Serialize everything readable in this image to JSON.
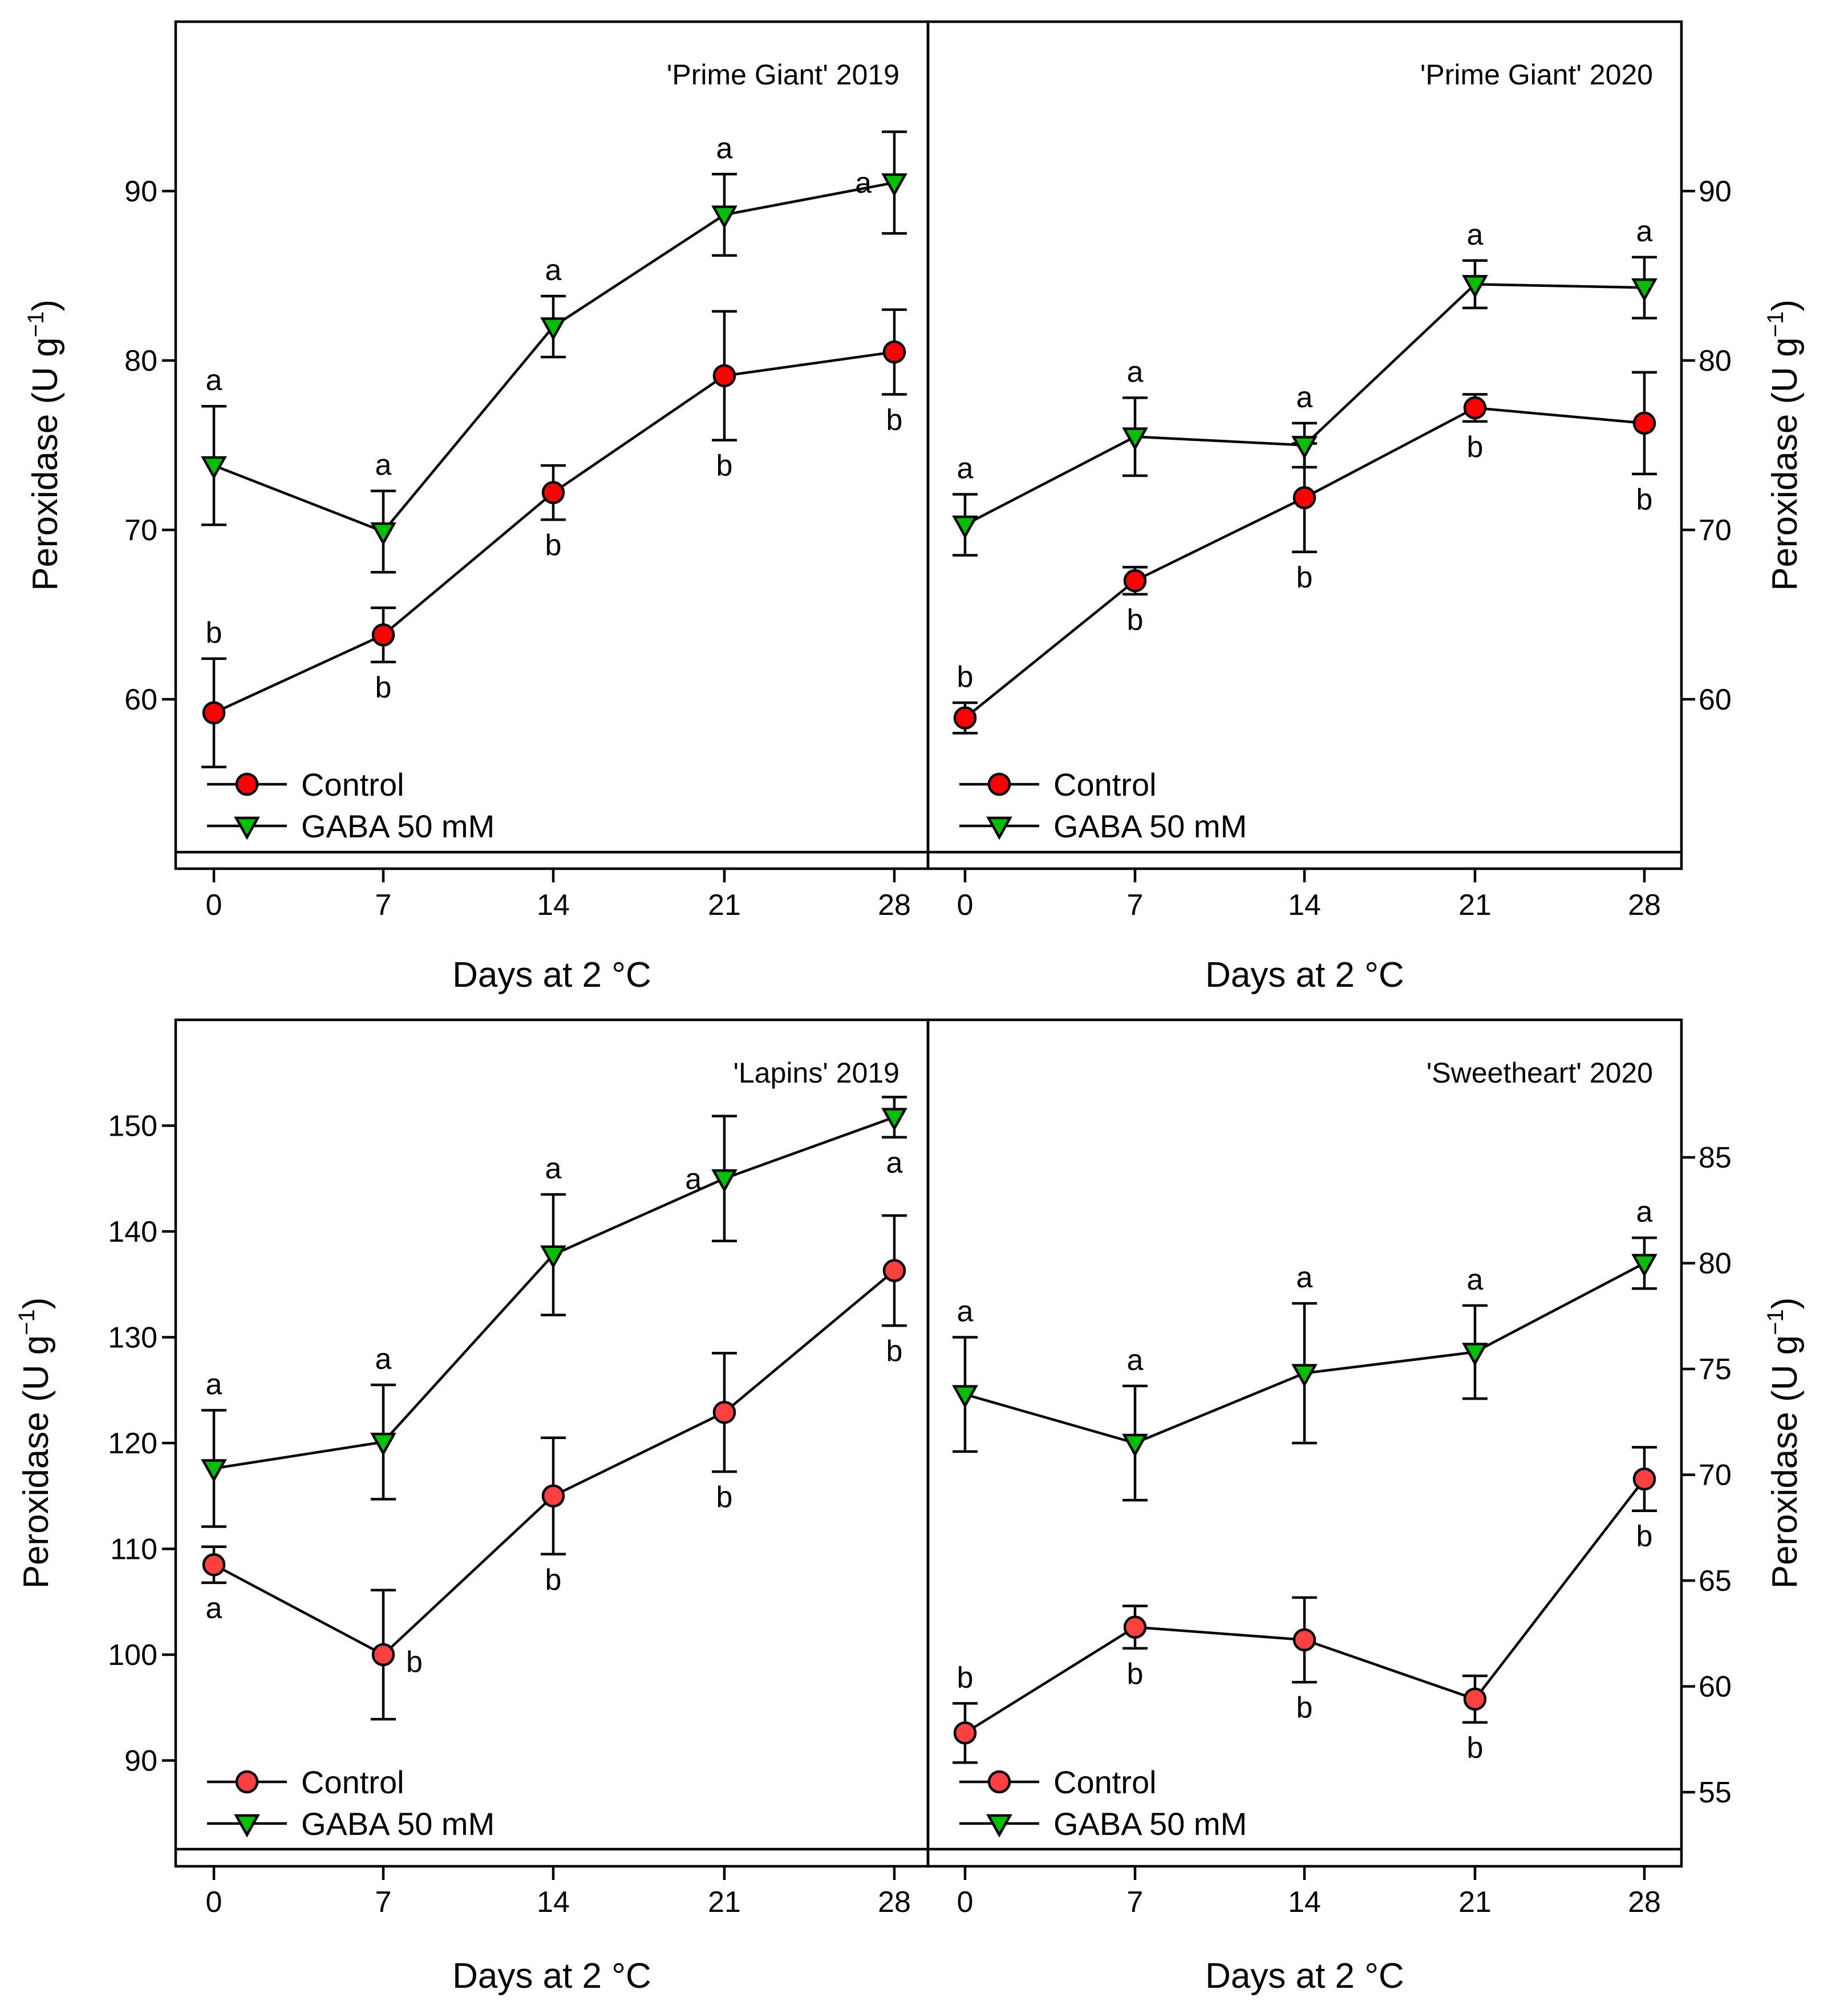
{
  "chart_data": [
    {
      "type": "line",
      "title": "'Prime Giant' 2019",
      "xlabel": "Days at 2 °C",
      "ylabel": "Peroxidase (U g−1)",
      "ylabel_main": "Peroxidase (U g",
      "ylabel_sup": "−1",
      "ylabel_close": ")",
      "y_axis_side": "left",
      "categories": [
        0,
        7,
        14,
        21,
        28
      ],
      "ylim": [
        50,
        100
      ],
      "yticks": [
        60,
        70,
        80,
        90
      ],
      "series": [
        {
          "name": "Control",
          "marker": "circle",
          "color": "#ff0000",
          "values": [
            59.2,
            63.8,
            72.2,
            79.1,
            80.5
          ],
          "errors": [
            3.2,
            1.6,
            1.6,
            3.8,
            2.5
          ],
          "letters": [
            "b",
            "b",
            "b",
            "b",
            "b"
          ],
          "letter_pos": [
            "above",
            "below",
            "below",
            "below",
            "below"
          ]
        },
        {
          "name": "GABA  50 mM",
          "marker": "triangle-down",
          "color": "#00c000",
          "values": [
            73.8,
            69.9,
            82.0,
            88.6,
            90.5
          ],
          "errors": [
            3.5,
            2.4,
            1.8,
            2.4,
            3.0
          ],
          "letters": [
            "a",
            "a",
            "a",
            "a",
            "a"
          ],
          "letter_pos": [
            "above",
            "above",
            "above",
            "above",
            "left"
          ]
        }
      ],
      "legend_location": "bottom-left"
    },
    {
      "type": "line",
      "title": "'Prime Giant' 2020",
      "xlabel": "Days at 2 °C",
      "ylabel": "Peroxidase (U g−1)",
      "ylabel_main": "Peroxidase (U g",
      "ylabel_sup": "−1",
      "ylabel_close": ")",
      "y_axis_side": "right",
      "categories": [
        0,
        7,
        14,
        21,
        28
      ],
      "ylim": [
        50,
        100
      ],
      "yticks": [
        60,
        70,
        80,
        90
      ],
      "series": [
        {
          "name": "Control",
          "marker": "circle",
          "color": "#ff0000",
          "values": [
            58.9,
            67.0,
            71.9,
            77.2,
            76.3
          ],
          "errors": [
            0.9,
            0.8,
            3.2,
            0.8,
            3.0
          ],
          "letters": [
            "b",
            "b",
            "b",
            "b",
            "b"
          ],
          "letter_pos": [
            "above",
            "below",
            "below",
            "below",
            "below"
          ]
        },
        {
          "name": "GABA  50 mM",
          "marker": "triangle-down",
          "color": "#00c000",
          "values": [
            70.3,
            75.5,
            75.0,
            84.5,
            84.3
          ],
          "errors": [
            1.8,
            2.3,
            1.3,
            1.4,
            1.8
          ],
          "letters": [
            "a",
            "a",
            "a",
            "a",
            "a"
          ],
          "letter_pos": [
            "above",
            "above",
            "above",
            "above",
            "above"
          ]
        }
      ],
      "legend_location": "bottom-left"
    },
    {
      "type": "line",
      "title": "'Lapins' 2019",
      "xlabel": "Days at 2 °C",
      "ylabel": "Peroxidase (U g−1)",
      "ylabel_main": "Peroxidase (U g",
      "ylabel_sup": "−1",
      "ylabel_close": ")",
      "y_axis_side": "left",
      "categories": [
        0,
        7,
        14,
        21,
        28
      ],
      "ylim": [
        80,
        160
      ],
      "yticks": [
        90,
        100,
        110,
        120,
        130,
        140,
        150
      ],
      "series": [
        {
          "name": "Control",
          "marker": "circle",
          "color": "#ff4040",
          "values": [
            108.5,
            100.0,
            115.0,
            122.9,
            136.3
          ],
          "errors": [
            1.7,
            6.1,
            5.5,
            5.6,
            5.2
          ],
          "letters": [
            "a",
            "b",
            "b",
            "b",
            "b"
          ],
          "letter_pos": [
            "below",
            "right",
            "below",
            "below",
            "below"
          ]
        },
        {
          "name": "GABA 50 mM",
          "marker": "triangle-down",
          "color": "#00c000",
          "values": [
            117.6,
            120.1,
            137.8,
            145.0,
            150.8
          ],
          "errors": [
            5.5,
            5.4,
            5.7,
            5.9,
            1.9
          ],
          "letters": [
            "a",
            "a",
            "a",
            "a",
            "a"
          ],
          "letter_pos": [
            "above",
            "above",
            "above",
            "left",
            "below"
          ]
        }
      ],
      "legend_location": "bottom-left"
    },
    {
      "type": "line",
      "title": "'Sweetheart' 2020",
      "xlabel": "Days at 2 °C",
      "ylabel": "Peroxidase (U g−1)",
      "ylabel_main": "Peroxidase (U g",
      "ylabel_sup": "−1",
      "ylabel_close": ")",
      "y_axis_side": "right",
      "categories": [
        0,
        7,
        14,
        21,
        28
      ],
      "ylim": [
        51.5,
        91.5
      ],
      "yticks": [
        55,
        60,
        65,
        70,
        75,
        80,
        85
      ],
      "series": [
        {
          "name": "Control",
          "marker": "circle",
          "color": "#ff4040",
          "values": [
            57.8,
            62.8,
            62.2,
            59.4,
            69.8
          ],
          "errors": [
            1.4,
            1.0,
            2.0,
            1.1,
            1.5
          ],
          "letters": [
            "b",
            "b",
            "b",
            "b",
            "b"
          ],
          "letter_pos": [
            "above",
            "below",
            "below",
            "below",
            "below"
          ]
        },
        {
          "name": "GABA 50 mM",
          "marker": "triangle-down",
          "color": "#00c000",
          "values": [
            73.8,
            71.5,
            74.8,
            75.8,
            80.0
          ],
          "errors": [
            2.7,
            2.7,
            3.3,
            2.2,
            1.2
          ],
          "letters": [
            "a",
            "a",
            "a",
            "a",
            "a"
          ],
          "letter_pos": [
            "above",
            "above",
            "above",
            "above",
            "above"
          ]
        }
      ],
      "legend_location": "bottom-left"
    }
  ]
}
